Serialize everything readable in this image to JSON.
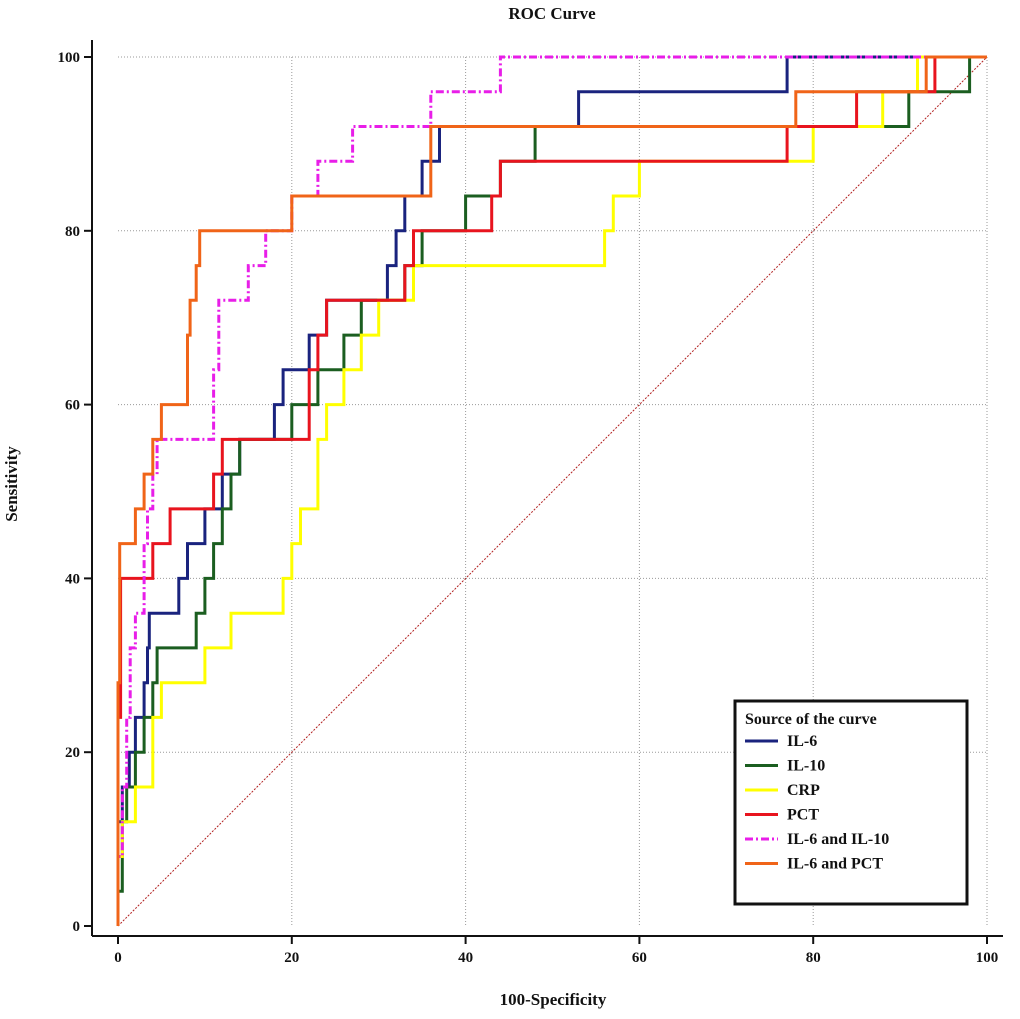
{
  "chart_data": {
    "type": "line",
    "title": "ROC Curve",
    "xlabel": "100-Specificity",
    "ylabel": "Sensitivity",
    "xlim": [
      0,
      100
    ],
    "ylim": [
      0,
      100
    ],
    "xticks": [
      0,
      20,
      40,
      60,
      80,
      100
    ],
    "yticks": [
      0,
      20,
      40,
      60,
      80,
      100
    ],
    "grid": true,
    "legend_title": "Source of the curve",
    "legend_position": "bottom-right",
    "reference_line": {
      "name": "diagonal",
      "color": "#b22222",
      "points": [
        [
          0,
          0
        ],
        [
          100,
          100
        ]
      ]
    },
    "series": [
      {
        "name": "IL-6",
        "color": "#1a237e",
        "dash": "",
        "points": [
          [
            0,
            0
          ],
          [
            0,
            12
          ],
          [
            0.5,
            12
          ],
          [
            0.5,
            16
          ],
          [
            1.3,
            16
          ],
          [
            1.3,
            20
          ],
          [
            2,
            20
          ],
          [
            2,
            24
          ],
          [
            3,
            24
          ],
          [
            3,
            28
          ],
          [
            3.4,
            28
          ],
          [
            3.4,
            32
          ],
          [
            3.6,
            32
          ],
          [
            3.6,
            36
          ],
          [
            7,
            36
          ],
          [
            7,
            40
          ],
          [
            8,
            40
          ],
          [
            8,
            44
          ],
          [
            10,
            44
          ],
          [
            10,
            48
          ],
          [
            12,
            48
          ],
          [
            12,
            52
          ],
          [
            14,
            52
          ],
          [
            14,
            56
          ],
          [
            18,
            56
          ],
          [
            18,
            60
          ],
          [
            19,
            60
          ],
          [
            19,
            64
          ],
          [
            22,
            64
          ],
          [
            22,
            68
          ],
          [
            24,
            68
          ],
          [
            24,
            72
          ],
          [
            31,
            72
          ],
          [
            31,
            76
          ],
          [
            32,
            76
          ],
          [
            32,
            80
          ],
          [
            33,
            80
          ],
          [
            33,
            84
          ],
          [
            35,
            84
          ],
          [
            35,
            88
          ],
          [
            37,
            88
          ],
          [
            37,
            92
          ],
          [
            53,
            92
          ],
          [
            53,
            96
          ],
          [
            77,
            96
          ],
          [
            77,
            100
          ],
          [
            100,
            100
          ]
        ]
      },
      {
        "name": "IL-10",
        "color": "#1b5e20",
        "dash": "",
        "points": [
          [
            0,
            0
          ],
          [
            0,
            4
          ],
          [
            0.5,
            4
          ],
          [
            0.5,
            12
          ],
          [
            1,
            12
          ],
          [
            1,
            16
          ],
          [
            2,
            16
          ],
          [
            2,
            20
          ],
          [
            3,
            20
          ],
          [
            3,
            24
          ],
          [
            4,
            24
          ],
          [
            4,
            28
          ],
          [
            4.5,
            28
          ],
          [
            4.5,
            32
          ],
          [
            9,
            32
          ],
          [
            9,
            36
          ],
          [
            10,
            36
          ],
          [
            10,
            40
          ],
          [
            11,
            40
          ],
          [
            11,
            44
          ],
          [
            12,
            44
          ],
          [
            12,
            48
          ],
          [
            13,
            48
          ],
          [
            13,
            52
          ],
          [
            14,
            52
          ],
          [
            14,
            56
          ],
          [
            20,
            56
          ],
          [
            20,
            60
          ],
          [
            23,
            60
          ],
          [
            23,
            64
          ],
          [
            26,
            64
          ],
          [
            26,
            68
          ],
          [
            28,
            68
          ],
          [
            28,
            72
          ],
          [
            33,
            72
          ],
          [
            33,
            76
          ],
          [
            35,
            76
          ],
          [
            35,
            80
          ],
          [
            40,
            80
          ],
          [
            40,
            84
          ],
          [
            44,
            84
          ],
          [
            44,
            88
          ],
          [
            48,
            88
          ],
          [
            48,
            92
          ],
          [
            88,
            92
          ],
          [
            88,
            92
          ],
          [
            91,
            92
          ],
          [
            91,
            96
          ],
          [
            98,
            96
          ],
          [
            98,
            100
          ],
          [
            100,
            100
          ]
        ]
      },
      {
        "name": "CRP",
        "color": "#ffff00",
        "dash": "",
        "points": [
          [
            0,
            0
          ],
          [
            0,
            8
          ],
          [
            0.5,
            8
          ],
          [
            0.5,
            12
          ],
          [
            2,
            12
          ],
          [
            2,
            16
          ],
          [
            4,
            16
          ],
          [
            4,
            24
          ],
          [
            5,
            24
          ],
          [
            5,
            28
          ],
          [
            10,
            28
          ],
          [
            10,
            32
          ],
          [
            13,
            32
          ],
          [
            13,
            36
          ],
          [
            19,
            36
          ],
          [
            19,
            40
          ],
          [
            20,
            40
          ],
          [
            20,
            44
          ],
          [
            21,
            44
          ],
          [
            21,
            48
          ],
          [
            23,
            48
          ],
          [
            23,
            56
          ],
          [
            24,
            56
          ],
          [
            24,
            60
          ],
          [
            26,
            60
          ],
          [
            26,
            64
          ],
          [
            28,
            64
          ],
          [
            28,
            68
          ],
          [
            30,
            68
          ],
          [
            30,
            72
          ],
          [
            34,
            72
          ],
          [
            34,
            76
          ],
          [
            56,
            76
          ],
          [
            56,
            80
          ],
          [
            57,
            80
          ],
          [
            57,
            84
          ],
          [
            60,
            84
          ],
          [
            60,
            88
          ],
          [
            80,
            88
          ],
          [
            80,
            92
          ],
          [
            88,
            92
          ],
          [
            88,
            96
          ],
          [
            92,
            96
          ],
          [
            92,
            100
          ],
          [
            100,
            100
          ]
        ]
      },
      {
        "name": "PCT",
        "color": "#e8141e",
        "dash": "",
        "points": [
          [
            0,
            0
          ],
          [
            0,
            24
          ],
          [
            0.3,
            24
          ],
          [
            0.3,
            40
          ],
          [
            4,
            40
          ],
          [
            4,
            44
          ],
          [
            6,
            44
          ],
          [
            6,
            48
          ],
          [
            11,
            48
          ],
          [
            11,
            52
          ],
          [
            12,
            52
          ],
          [
            12,
            56
          ],
          [
            22,
            56
          ],
          [
            22,
            64
          ],
          [
            23,
            64
          ],
          [
            23,
            68
          ],
          [
            24,
            68
          ],
          [
            24,
            72
          ],
          [
            33,
            72
          ],
          [
            33,
            76
          ],
          [
            34,
            76
          ],
          [
            34,
            80
          ],
          [
            43,
            80
          ],
          [
            43,
            84
          ],
          [
            44,
            84
          ],
          [
            44,
            88
          ],
          [
            77,
            88
          ],
          [
            77,
            92
          ],
          [
            85,
            92
          ],
          [
            85,
            96
          ],
          [
            94,
            96
          ],
          [
            94,
            100
          ],
          [
            100,
            100
          ]
        ]
      },
      {
        "name": "IL-6 and IL-10",
        "color": "#e81ee8",
        "dash": "8,3,2,3",
        "points": [
          [
            0,
            0
          ],
          [
            0,
            8
          ],
          [
            0.5,
            8
          ],
          [
            0.5,
            16
          ],
          [
            1,
            16
          ],
          [
            1,
            24
          ],
          [
            1.4,
            24
          ],
          [
            1.4,
            32
          ],
          [
            2,
            32
          ],
          [
            2,
            36
          ],
          [
            3,
            36
          ],
          [
            3,
            44
          ],
          [
            3.4,
            44
          ],
          [
            3.4,
            48
          ],
          [
            4,
            48
          ],
          [
            4,
            52
          ],
          [
            4.5,
            52
          ],
          [
            4.5,
            56
          ],
          [
            11,
            56
          ],
          [
            11,
            64
          ],
          [
            11.6,
            64
          ],
          [
            11.6,
            72
          ],
          [
            15,
            72
          ],
          [
            15,
            76
          ],
          [
            17,
            76
          ],
          [
            17,
            80
          ],
          [
            20,
            80
          ],
          [
            20,
            84
          ],
          [
            23,
            84
          ],
          [
            23,
            88
          ],
          [
            27,
            88
          ],
          [
            27,
            92
          ],
          [
            36,
            92
          ],
          [
            36,
            96
          ],
          [
            44,
            96
          ],
          [
            44,
            100
          ],
          [
            100,
            100
          ]
        ]
      },
      {
        "name": "IL-6 and PCT",
        "color": "#f06418",
        "dash": "",
        "points": [
          [
            0,
            0
          ],
          [
            0,
            28
          ],
          [
            0.2,
            28
          ],
          [
            0.2,
            44
          ],
          [
            2,
            44
          ],
          [
            2,
            48
          ],
          [
            3,
            48
          ],
          [
            3,
            52
          ],
          [
            4,
            52
          ],
          [
            4,
            56
          ],
          [
            5,
            56
          ],
          [
            5,
            60
          ],
          [
            8,
            60
          ],
          [
            8,
            68
          ],
          [
            8.3,
            68
          ],
          [
            8.3,
            72
          ],
          [
            9,
            72
          ],
          [
            9,
            76
          ],
          [
            9.4,
            76
          ],
          [
            9.4,
            80
          ],
          [
            20,
            80
          ],
          [
            20,
            84
          ],
          [
            36,
            84
          ],
          [
            36,
            92
          ],
          [
            78,
            92
          ],
          [
            78,
            96
          ],
          [
            93,
            96
          ],
          [
            93,
            100
          ],
          [
            100,
            100
          ]
        ]
      }
    ]
  }
}
